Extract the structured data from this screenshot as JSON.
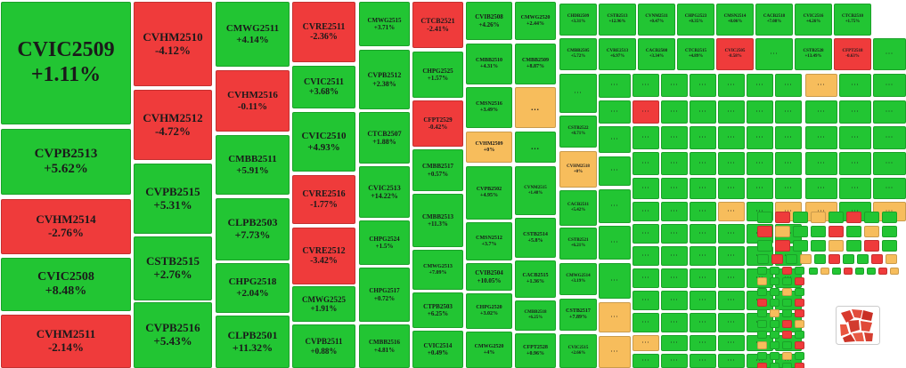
{
  "colors": {
    "up": "#22c533",
    "down": "#ef3b3b",
    "flat": "#f7bd5c"
  },
  "chart_data": {
    "type": "treemap",
    "tiles": [
      {
        "code": "CVIC2509",
        "change": "+1.11%",
        "trend": "up"
      },
      {
        "code": "CVPB2513",
        "change": "+5.62%",
        "trend": "up"
      },
      {
        "code": "CVHM2514",
        "change": "-2.76%",
        "trend": "down"
      },
      {
        "code": "CVIC2508",
        "change": "+8.48%",
        "trend": "up"
      },
      {
        "code": "CVHM2511",
        "change": "-2.14%",
        "trend": "down"
      },
      {
        "code": "CVHM2510",
        "change": "-4.12%",
        "trend": "down"
      },
      {
        "code": "CVHM2512",
        "change": "-4.72%",
        "trend": "down"
      },
      {
        "code": "CVPB2515",
        "change": "+5.31%",
        "trend": "up"
      },
      {
        "code": "CSTB2515",
        "change": "+2.76%",
        "trend": "up"
      },
      {
        "code": "CVPB2516",
        "change": "+5.43%",
        "trend": "up"
      },
      {
        "code": "CMWG2511",
        "change": "+4.14%",
        "trend": "up"
      },
      {
        "code": "CVHM2516",
        "change": "-0.11%",
        "trend": "down"
      },
      {
        "code": "CMBB2511",
        "change": "+5.91%",
        "trend": "up"
      },
      {
        "code": "CLPB2503",
        "change": "+7.73%",
        "trend": "up"
      },
      {
        "code": "CHPG2518",
        "change": "+2.04%",
        "trend": "up"
      },
      {
        "code": "CLPB2501",
        "change": "+11.32%",
        "trend": "up"
      },
      {
        "code": "CVRE2511",
        "change": "-2.36%",
        "trend": "down"
      },
      {
        "code": "CVIC2511",
        "change": "+3.68%",
        "trend": "up"
      },
      {
        "code": "CVIC2510",
        "change": "+4.93%",
        "trend": "up"
      },
      {
        "code": "CVRE2516",
        "change": "-1.77%",
        "trend": "down"
      },
      {
        "code": "CVRE2512",
        "change": "-3.42%",
        "trend": "down"
      },
      {
        "code": "CMWG2525",
        "change": "+1.91%",
        "trend": "up"
      },
      {
        "code": "CVPB2511",
        "change": "+0.88%",
        "trend": "up"
      },
      {
        "code": "CMWG2515",
        "change": "+3.71%",
        "trend": "up"
      },
      {
        "code": "CVPB2512",
        "change": "+2.38%",
        "trend": "up"
      },
      {
        "code": "CTCB2507",
        "change": "+1.88%",
        "trend": "up"
      },
      {
        "code": "CVIC2513",
        "change": "+14.22%",
        "trend": "up"
      },
      {
        "code": "CHPG2524",
        "change": "+1.5%",
        "trend": "up"
      },
      {
        "code": "CHPG2517",
        "change": "+0.72%",
        "trend": "up"
      },
      {
        "code": "CMBB2516",
        "change": "+4.81%",
        "trend": "up"
      },
      {
        "code": "CTCB2521",
        "change": "-2.41%",
        "trend": "down"
      },
      {
        "code": "CHPG2525",
        "change": "+1.57%",
        "trend": "up"
      },
      {
        "code": "CFPT2529",
        "change": "-0.42%",
        "trend": "down"
      },
      {
        "code": "CMBB2517",
        "change": "+0.57%",
        "trend": "up"
      },
      {
        "code": "CMBB2513",
        "change": "+11.3%",
        "trend": "up"
      },
      {
        "code": "CMWG2513",
        "change": "+7.09%",
        "trend": "up"
      },
      {
        "code": "CTPB2503",
        "change": "+6.25%",
        "trend": "up"
      },
      {
        "code": "CVIC2514",
        "change": "+0.49%",
        "trend": "up"
      },
      {
        "code": "CVIB2508",
        "change": "+4.26%",
        "trend": "up"
      },
      {
        "code": "CMWG2520",
        "change": "+2.44%",
        "trend": "up"
      },
      {
        "code": "CMBB2510",
        "change": "+4.31%",
        "trend": "up"
      },
      {
        "code": "CMBB2509",
        "change": "+8.87%",
        "trend": "up"
      },
      {
        "code": "CMSN2516",
        "change": "+3.49%",
        "trend": "up"
      },
      {
        "code": "...",
        "change": "",
        "trend": "flat"
      },
      {
        "code": "CVHM2509",
        "change": "+0%",
        "trend": "flat"
      },
      {
        "code": "...",
        "change": "",
        "trend": "up"
      },
      {
        "code": "CVPB2502",
        "change": "+4.95%",
        "trend": "up"
      },
      {
        "code": "CVNM2515",
        "change": "+1.48%",
        "trend": "up"
      },
      {
        "code": "CMSN2512",
        "change": "+3.7%",
        "trend": "up"
      },
      {
        "code": "CSTB2514",
        "change": "+5.8%",
        "trend": "up"
      },
      {
        "code": "CVIB2504",
        "change": "+10.05%",
        "trend": "up"
      },
      {
        "code": "CACB2515",
        "change": "+1.36%",
        "trend": "up"
      },
      {
        "code": "CHPG2520",
        "change": "+3.02%",
        "trend": "up"
      },
      {
        "code": "CMBB2518",
        "change": "+6.25%",
        "trend": "up"
      },
      {
        "code": "CMWG2520",
        "change": "+4%",
        "trend": "up"
      },
      {
        "code": "CFPT2528",
        "change": "+0.96%",
        "trend": "up"
      },
      {
        "code": "CHDB2509",
        "change": "+3.31%",
        "trend": "up"
      },
      {
        "code": "CSTB2513",
        "change": "+12.96%",
        "trend": "up"
      },
      {
        "code": "CVNM2511",
        "change": "+0.47%",
        "trend": "up"
      },
      {
        "code": "CHPG2523",
        "change": "+0.35%",
        "trend": "up"
      },
      {
        "code": "CMSN2514",
        "change": "+8.06%",
        "trend": "up"
      },
      {
        "code": "CACB2518",
        "change": "+7.08%",
        "trend": "up"
      },
      {
        "code": "CVIC2516",
        "change": "+4.26%",
        "trend": "up"
      },
      {
        "code": "CTCB2510",
        "change": "+1.75%",
        "trend": "up"
      },
      {
        "code": "CMBB2505",
        "change": "+5.72%",
        "trend": "up"
      },
      {
        "code": "CVRE2513",
        "change": "+6.97%",
        "trend": "up"
      },
      {
        "code": "CACB2508",
        "change": "+3.34%",
        "trend": "up"
      },
      {
        "code": "CTCB2515",
        "change": "+4.89%",
        "trend": "up"
      },
      {
        "code": "CVIC2505",
        "change": "-8.58%",
        "trend": "down"
      },
      {
        "code": "CSTB2528",
        "change": "+13.49%",
        "trend": "up"
      },
      {
        "code": "CFPT2518",
        "change": "-0.63%",
        "trend": "down"
      },
      {
        "code": "CSTB2522",
        "change": "+8.71%",
        "trend": "up"
      },
      {
        "code": "CVHM2518",
        "change": "+0%",
        "trend": "flat"
      },
      {
        "code": "CACB2511",
        "change": "+5.42%",
        "trend": "up"
      },
      {
        "code": "CSTB2521",
        "change": "+6.21%",
        "trend": "up"
      },
      {
        "code": "CMWG2514",
        "change": "+3.19%",
        "trend": "up"
      },
      {
        "code": "CSTB2517",
        "change": "+7.89%",
        "trend": "up"
      },
      {
        "code": "CVIC2515",
        "change": "+2.66%",
        "trend": "up"
      }
    ]
  }
}
